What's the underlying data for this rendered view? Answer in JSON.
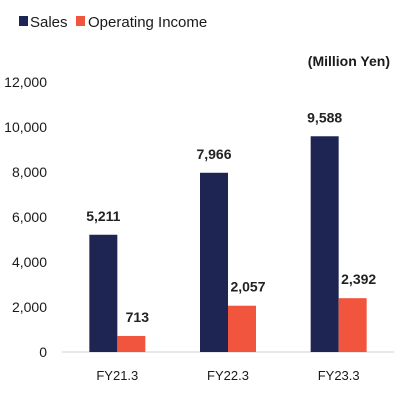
{
  "chart_data": {
    "type": "bar",
    "categories": [
      "FY21.3",
      "FY22.3",
      "FY23.3"
    ],
    "series": [
      {
        "name": "Sales",
        "values": [
          5211,
          7966,
          9588
        ],
        "labels": [
          "5,211",
          "7,966",
          "9,588"
        ]
      },
      {
        "name": "Operating Income",
        "values": [
          713,
          2057,
          2392
        ],
        "labels": [
          "713",
          "2,057",
          "2,392"
        ]
      }
    ],
    "unit_label": "(Million Yen)",
    "ylim": [
      0,
      12000
    ],
    "yticks": [
      0,
      2000,
      4000,
      6000,
      8000,
      10000,
      12000
    ],
    "ytick_labels": [
      "0",
      "2,000",
      "4,000",
      "6,000",
      "8,000",
      "10,000",
      "12,000"
    ],
    "grid": false,
    "legend_position": "top-left"
  },
  "colors": {
    "sales": "#1f2553",
    "operating_income": "#f2553d",
    "axis": "#d0d0d0"
  }
}
